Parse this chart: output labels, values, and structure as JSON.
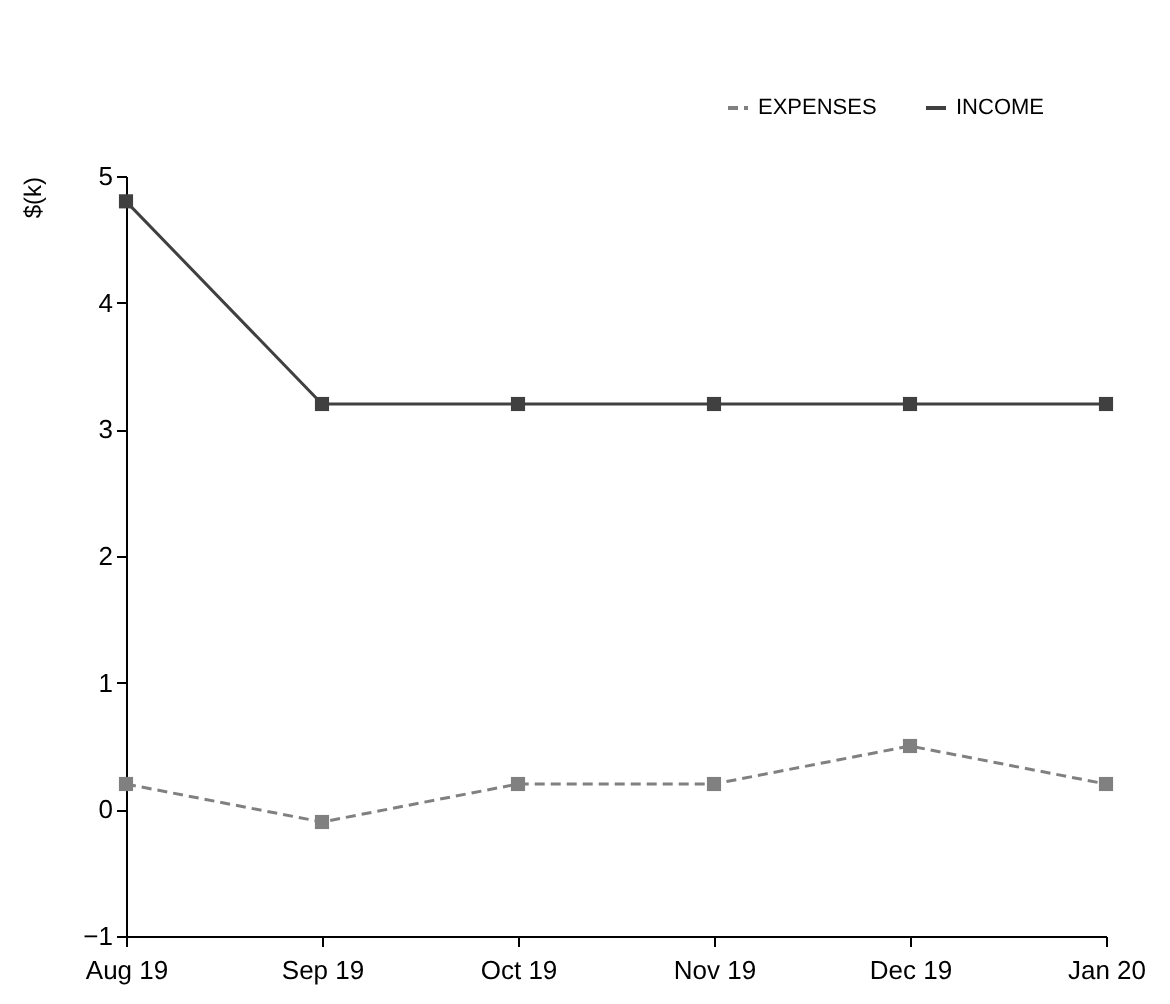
{
  "chart_data": {
    "type": "line",
    "ylabel": "$(k)",
    "categories": [
      "Aug 19",
      "Sep 19",
      "Oct 19",
      "Nov 19",
      "Dec 19",
      "Jan 20"
    ],
    "series": [
      {
        "name": "EXPENSES",
        "color": "#808080",
        "line_style": "dashed",
        "values": [
          0.2,
          -0.1,
          0.2,
          0.2,
          0.5,
          0.2
        ]
      },
      {
        "name": "INCOME",
        "color": "#404040",
        "line_style": "solid",
        "values": [
          4.8,
          3.2,
          3.2,
          3.2,
          3.2,
          3.2
        ]
      }
    ],
    "ylim": [
      -1,
      5
    ],
    "yticks": [
      -1,
      0,
      1,
      2,
      3,
      4,
      5
    ],
    "grid": false,
    "legend": "top right",
    "marker": "square"
  }
}
